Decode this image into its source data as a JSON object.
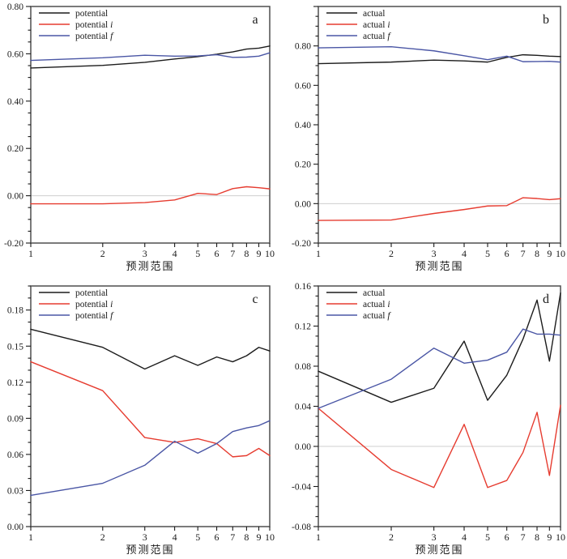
{
  "figure": {
    "xlabel": "预测范围",
    "x_scale": "log",
    "x_tick_labels": [
      "1",
      "2",
      "3",
      "4",
      "5",
      "6",
      "7",
      "8",
      "9",
      "10"
    ],
    "colors": {
      "black_series": "#1c1c1c",
      "red_series": "#e63c30",
      "blue_series": "#4a56a5",
      "frame": "#4f4f4f",
      "tick": "#1a1a1a",
      "text": "#1a1a1a",
      "zero_line": "#cfcfcf"
    }
  },
  "chart_data": [
    {
      "panel_label": "a",
      "type": "line",
      "xlabel": "预测范围",
      "x": [
        1,
        2,
        3,
        4,
        5,
        6,
        7,
        8,
        9,
        10
      ],
      "ylim": [
        -0.2,
        0.8
      ],
      "y_major_step": 0.2,
      "y_minor_step": 0.05,
      "zero_line": true,
      "legend_position": "top-left",
      "series": [
        {
          "label": "potential",
          "label_base": "potential",
          "label_italic": "",
          "color": "#1c1c1c",
          "values": [
            0.54,
            0.551,
            0.564,
            0.578,
            0.588,
            0.598,
            0.608,
            0.62,
            0.624,
            0.633
          ]
        },
        {
          "label": "potential i",
          "label_base": "potential",
          "label_italic": "i",
          "color": "#e63c30",
          "values": [
            -0.034,
            -0.034,
            -0.029,
            -0.018,
            0.01,
            0.005,
            0.03,
            0.038,
            0.034,
            0.029
          ]
        },
        {
          "label": "potential f",
          "label_base": "potential",
          "label_italic": "f",
          "color": "#4a56a5",
          "values": [
            0.572,
            0.583,
            0.594,
            0.59,
            0.591,
            0.596,
            0.585,
            0.586,
            0.59,
            0.604
          ]
        }
      ]
    },
    {
      "panel_label": "b",
      "type": "line",
      "xlabel": "预测范围",
      "x": [
        1,
        2,
        3,
        4,
        5,
        6,
        7,
        8,
        9,
        10
      ],
      "ylim": [
        -0.2,
        1.0
      ],
      "y_major_step": 0.2,
      "y_minor_step": 0.05,
      "zero_line": true,
      "legend_position": "top-left",
      "series": [
        {
          "label": "actual",
          "label_base": "actual",
          "label_italic": "",
          "color": "#1c1c1c",
          "values": [
            0.71,
            0.718,
            0.728,
            0.724,
            0.718,
            0.742,
            0.755,
            0.752,
            0.748,
            0.746
          ]
        },
        {
          "label": "actual i",
          "label_base": "actual",
          "label_italic": "i",
          "color": "#e63c30",
          "values": [
            -0.085,
            -0.083,
            -0.05,
            -0.03,
            -0.012,
            -0.01,
            0.03,
            0.026,
            0.02,
            0.025
          ]
        },
        {
          "label": "actual f",
          "label_base": "actual",
          "label_italic": "f",
          "color": "#4a56a5",
          "values": [
            0.79,
            0.796,
            0.775,
            0.75,
            0.73,
            0.748,
            0.72,
            0.721,
            0.722,
            0.718
          ]
        }
      ]
    },
    {
      "panel_label": "c",
      "type": "line",
      "xlabel": "预测范围",
      "x": [
        1,
        2,
        3,
        4,
        5,
        6,
        7,
        8,
        9,
        10
      ],
      "ylim": [
        0.0,
        0.2
      ],
      "y_major_step": 0.03,
      "y_minor_step": 0.01,
      "zero_line": false,
      "legend_position": "top-left",
      "series": [
        {
          "label": "potential",
          "label_base": "potential",
          "label_italic": "",
          "color": "#1c1c1c",
          "values": [
            0.164,
            0.149,
            0.131,
            0.142,
            0.134,
            0.141,
            0.137,
            0.142,
            0.149,
            0.146
          ]
        },
        {
          "label": "potential i",
          "label_base": "potential",
          "label_italic": "i",
          "color": "#e63c30",
          "values": [
            0.137,
            0.113,
            0.074,
            0.07,
            0.073,
            0.069,
            0.058,
            0.059,
            0.065,
            0.059
          ]
        },
        {
          "label": "potential f",
          "label_base": "potential",
          "label_italic": "f",
          "color": "#4a56a5",
          "values": [
            0.026,
            0.036,
            0.051,
            0.071,
            0.061,
            0.069,
            0.079,
            0.082,
            0.084,
            0.088
          ]
        }
      ]
    },
    {
      "panel_label": "d",
      "type": "line",
      "xlabel": "预测范围",
      "x": [
        1,
        2,
        3,
        4,
        5,
        6,
        7,
        8,
        9,
        10
      ],
      "ylim": [
        -0.08,
        0.16
      ],
      "y_major_step": 0.04,
      "y_minor_step": 0.01,
      "zero_line": true,
      "legend_position": "top-left",
      "series": [
        {
          "label": "actual",
          "label_base": "actual",
          "label_italic": "",
          "color": "#1c1c1c",
          "values": [
            0.075,
            0.044,
            0.058,
            0.105,
            0.046,
            0.071,
            0.107,
            0.146,
            0.085,
            0.153
          ]
        },
        {
          "label": "actual i",
          "label_base": "actual",
          "label_italic": "i",
          "color": "#e63c30",
          "values": [
            0.038,
            -0.023,
            -0.041,
            0.022,
            -0.041,
            -0.034,
            -0.006,
            0.034,
            -0.029,
            0.041
          ]
        },
        {
          "label": "actual f",
          "label_base": "actual",
          "label_italic": "f",
          "color": "#4a56a5",
          "values": [
            0.038,
            0.067,
            0.098,
            0.083,
            0.086,
            0.094,
            0.117,
            0.112,
            0.112,
            0.111
          ]
        }
      ]
    }
  ]
}
